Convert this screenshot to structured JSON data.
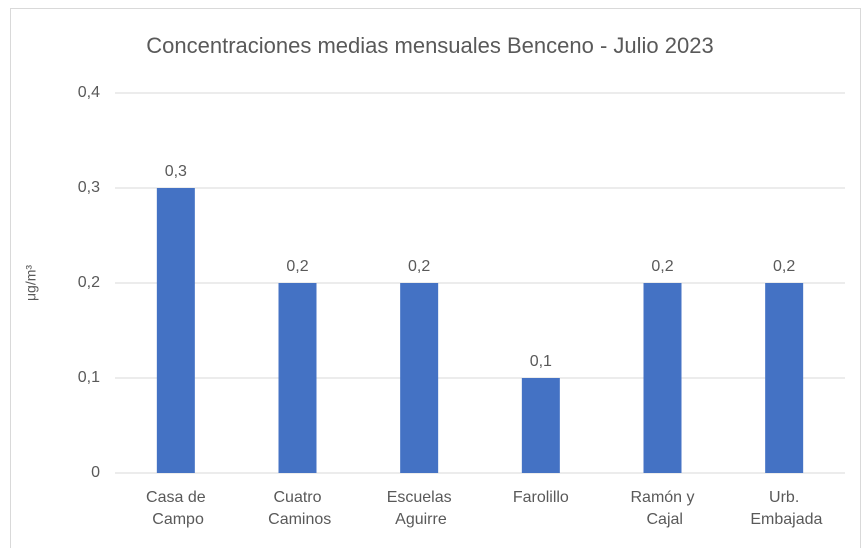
{
  "chart_data": {
    "type": "bar",
    "title": "Concentraciones medias mensuales Benceno - Julio 2023",
    "y_label": "μg/m³",
    "categories": [
      "Casa de Campo",
      "Cuatro Caminos",
      "Escuelas Aguirre",
      "Farolillo",
      "Ramón y Cajal",
      "Urb. Embajada"
    ],
    "values": [
      0.3,
      0.2,
      0.2,
      0.1,
      0.2,
      0.2
    ],
    "value_labels": [
      "0,3",
      "0,2",
      "0,2",
      "0,1",
      "0,2",
      "0,2"
    ],
    "color": "#4472c4",
    "ylim": [
      0,
      0.4
    ],
    "yticks": [
      0,
      {
        "value": 0.1,
        "label": "0,1"
      },
      {
        "value": 0.2,
        "label": "0,2"
      },
      {
        "value": 0.3,
        "label": "0,3"
      },
      {
        "value": 0.4,
        "label": "0,4"
      }
    ],
    "grid": true
  }
}
